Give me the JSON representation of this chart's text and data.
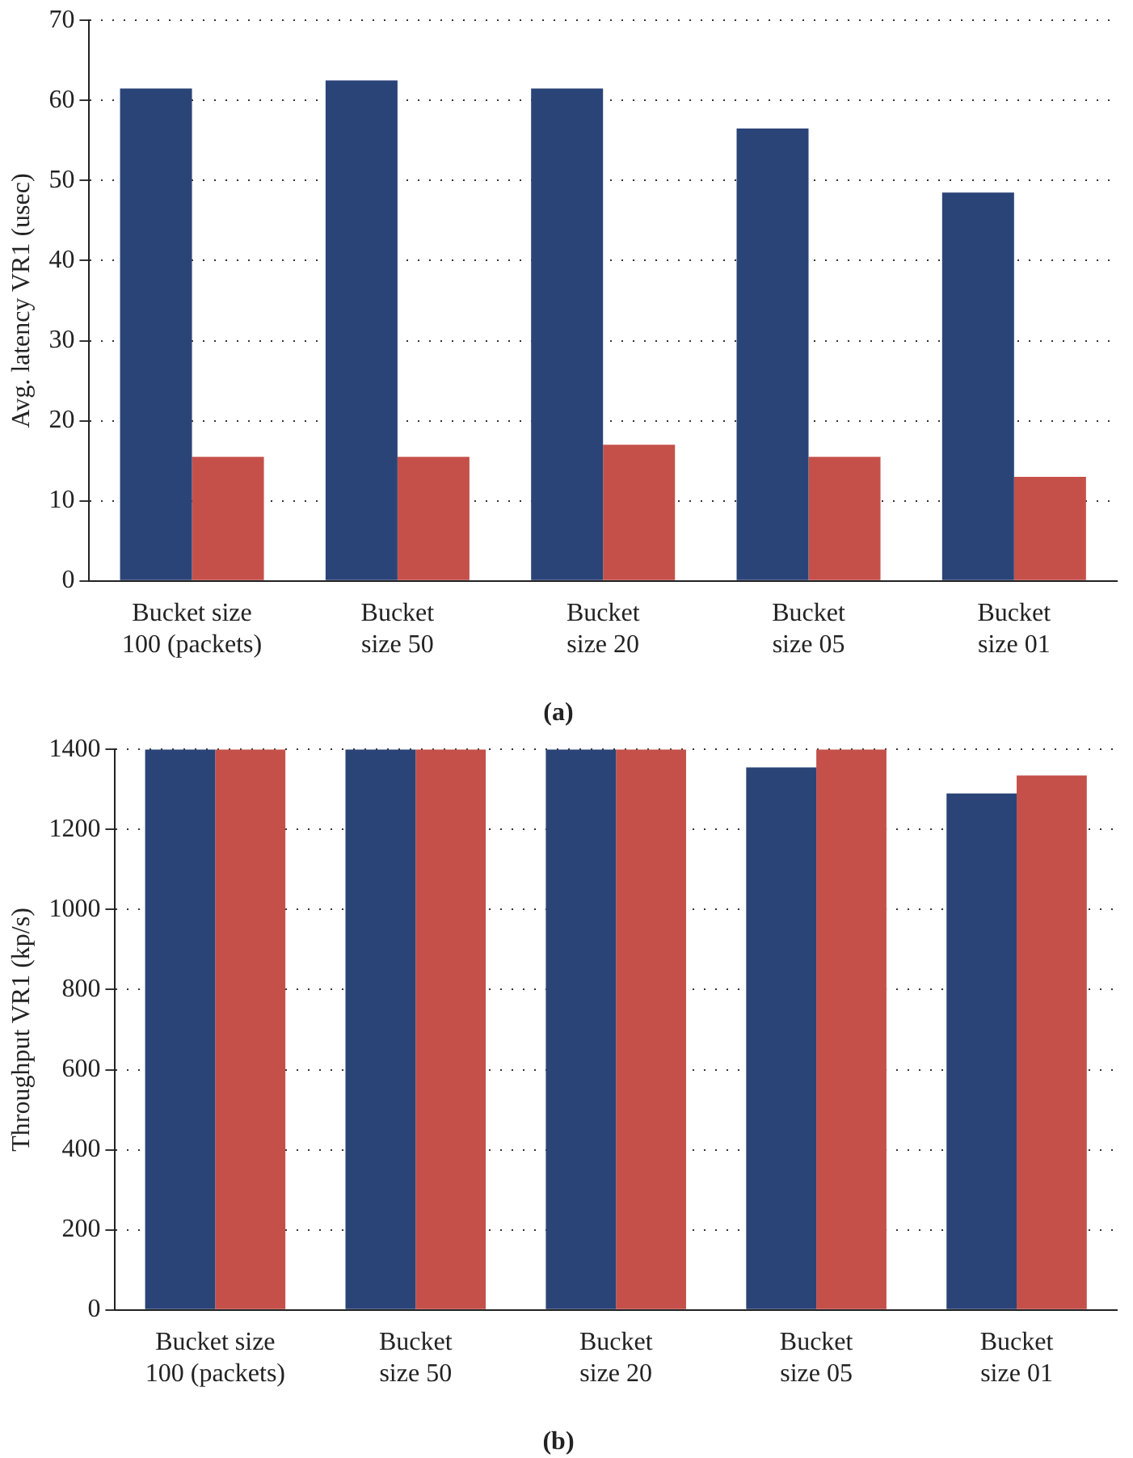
{
  "chart_data": [
    {
      "type": "bar",
      "title": "(a)",
      "ylabel": "Avg. latency VR1 (usec)",
      "categories": [
        "Bucket size\n100 (packets)",
        "Bucket\nsize 50",
        "Bucket\nsize 20",
        "Bucket\nsize 05",
        "Bucket\nsize 01"
      ],
      "series": [
        {
          "color": "#2b4478",
          "values": [
            61.5,
            62.5,
            61.5,
            56.5,
            48.5
          ]
        },
        {
          "color": "#c5504a",
          "values": [
            15.5,
            15.5,
            17,
            15.5,
            13
          ]
        }
      ],
      "ylim": [
        0,
        70
      ],
      "yticks": [
        0,
        10,
        20,
        30,
        40,
        50,
        60,
        70
      ],
      "grid": "y"
    },
    {
      "type": "bar",
      "title": "(b)",
      "ylabel": "Throughput VR1 (kp/s)",
      "categories": [
        "Bucket size\n100 (packets)",
        "Bucket\nsize 50",
        "Bucket\nsize 20",
        "Bucket\nsize 05",
        "Bucket\nsize 01"
      ],
      "series": [
        {
          "color": "#2b4478",
          "values": [
            1400,
            1400,
            1400,
            1355,
            1290
          ]
        },
        {
          "color": "#c5504a",
          "values": [
            1400,
            1400,
            1400,
            1400,
            1335
          ]
        }
      ],
      "ylim": [
        0,
        1400
      ],
      "yticks": [
        0,
        200,
        400,
        600,
        800,
        1000,
        1200,
        1400
      ],
      "grid": "y"
    }
  ]
}
